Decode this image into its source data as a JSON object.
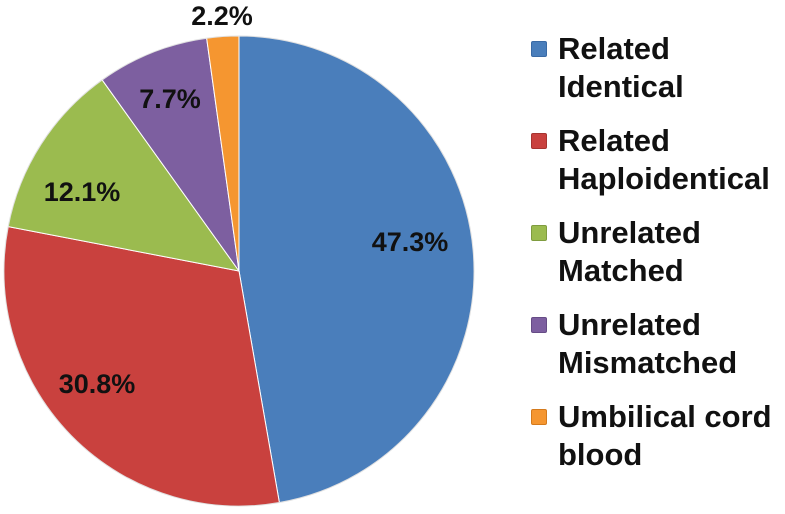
{
  "chart_data": {
    "type": "pie",
    "title": "",
    "start_angle_deg": 0,
    "direction": "clockwise",
    "slices": [
      {
        "label": "Related Identical",
        "value": 47.3,
        "display": "47.3%",
        "color": "#4a7ebb",
        "edge": "#3a6aa5"
      },
      {
        "label": "Related Haploidentical",
        "value": 30.8,
        "display": "30.8%",
        "color": "#c9413e",
        "edge": "#a63430"
      },
      {
        "label": "Unrelated Matched",
        "value": 12.1,
        "display": "12.1%",
        "color": "#9bbb4f",
        "edge": "#7f9c3f"
      },
      {
        "label": "Unrelated Mismatched",
        "value": 7.7,
        "display": "7.7%",
        "color": "#7d5fa0",
        "edge": "#664c86"
      },
      {
        "label": "Umbilical cord blood",
        "value": 2.2,
        "display": "2.2%",
        "color": "#f59630",
        "edge": "#d47a1c"
      }
    ],
    "legend": {
      "position": "right",
      "items": [
        "Related Identical",
        "Related Haploidentical",
        "Unrelated Matched",
        "Unrelated Mismatched",
        "Umbilical cord blood"
      ]
    }
  }
}
